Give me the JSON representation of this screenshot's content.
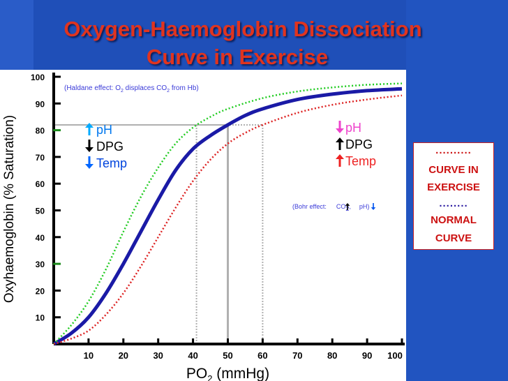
{
  "slide": {
    "title_line1": "Oxygen-Haemoglobin Dissociation",
    "title_line2": "Curve in Exercise"
  },
  "legend": {
    "dots_exercise": "..........",
    "exercise_line1": "CURVE IN",
    "exercise_line2": "EXERCISE",
    "dots_normal": "........",
    "normal_line1": "NORMAL",
    "normal_line2": "CURVE"
  },
  "colors": {
    "background": "#1f4fb8",
    "title": "#e0341f",
    "normal_curve": "#1a1aa6",
    "left_shift_curve": "#22cc22",
    "right_shift_curve": "#dd2222",
    "haldane_text": "#3a3ad8",
    "bohr_text": "#3a3ad8",
    "reference_lines": "#b0b0b0"
  },
  "chart_data": {
    "type": "line",
    "title": "",
    "xlabel": "PO2 (mmHg)",
    "ylabel": "Oxyhaemoglobin (% Saturation)",
    "xlim": [
      0,
      100
    ],
    "ylim": [
      0,
      100
    ],
    "x_ticks": [
      10,
      20,
      30,
      40,
      50,
      60,
      70,
      80,
      90,
      100
    ],
    "y_ticks": [
      10,
      20,
      30,
      40,
      50,
      60,
      70,
      80,
      90,
      100
    ],
    "grid": false,
    "series": [
      {
        "style": "solid",
        "color": "#1a1aa6",
        "points": [
          [
            0,
            0
          ],
          [
            5,
            4
          ],
          [
            10,
            10
          ],
          [
            15,
            19
          ],
          [
            20,
            30
          ],
          [
            25,
            42
          ],
          [
            30,
            54
          ],
          [
            35,
            65
          ],
          [
            40,
            73
          ],
          [
            45,
            78
          ],
          [
            50,
            82
          ],
          [
            55,
            85.5
          ],
          [
            60,
            88
          ],
          [
            70,
            91.5
          ],
          [
            80,
            93.5
          ],
          [
            90,
            94.8
          ],
          [
            100,
            95.5
          ]
        ]
      },
      {
        "style": "dotted",
        "color": "#22cc22",
        "points": [
          [
            0,
            0
          ],
          [
            5,
            7
          ],
          [
            10,
            16
          ],
          [
            15,
            28
          ],
          [
            20,
            42
          ],
          [
            25,
            55
          ],
          [
            30,
            66
          ],
          [
            35,
            75
          ],
          [
            40,
            81
          ],
          [
            45,
            85
          ],
          [
            50,
            88
          ],
          [
            60,
            92
          ],
          [
            70,
            94.5
          ],
          [
            80,
            96
          ],
          [
            90,
            97
          ],
          [
            100,
            97.5
          ]
        ]
      },
      {
        "style": "dotted",
        "color": "#dd2222",
        "points": [
          [
            0,
            0
          ],
          [
            5,
            2
          ],
          [
            10,
            5
          ],
          [
            15,
            11
          ],
          [
            20,
            19
          ],
          [
            25,
            29
          ],
          [
            30,
            40
          ],
          [
            35,
            51
          ],
          [
            40,
            61
          ],
          [
            45,
            69
          ],
          [
            50,
            75
          ],
          [
            55,
            79
          ],
          [
            60,
            82
          ],
          [
            70,
            86.5
          ],
          [
            80,
            89.5
          ],
          [
            90,
            91.5
          ],
          [
            100,
            93
          ]
        ]
      }
    ],
    "reference_lines": [
      {
        "x": 41,
        "y": 82
      },
      {
        "x": 50,
        "y": 82
      },
      {
        "x": 60,
        "y": 82
      }
    ],
    "annotations": {
      "haldane": {
        "prefix": "(Haldane effect: O",
        "sub1": "2",
        "mid": " displaces CO",
        "sub2": "2",
        "suffix": " from Hb)"
      },
      "bohr": {
        "prefix": "(Bohr effect:",
        "co": "CO",
        "sub": "2",
        "sep": ",",
        "ph": "pH",
        "suffix": ")"
      },
      "left_shift": [
        {
          "arrow": "up",
          "arrow_color": "#00aaff",
          "label": "pH",
          "label_color": "#0077ee"
        },
        {
          "arrow": "down",
          "arrow_color": "#000000",
          "label": "DPG",
          "label_color": "#000000"
        },
        {
          "arrow": "down",
          "arrow_color": "#0066ff",
          "label": "Temp",
          "label_color": "#0044dd"
        }
      ],
      "right_shift": [
        {
          "arrow": "down",
          "arrow_color": "#ee44cc",
          "label": "pH",
          "label_color": "#ee44cc"
        },
        {
          "arrow": "up",
          "arrow_color": "#000000",
          "label": "DPG",
          "label_color": "#000000"
        },
        {
          "arrow": "up",
          "arrow_color": "#ee2222",
          "label": "Temp",
          "label_color": "#ee2222"
        }
      ]
    }
  }
}
